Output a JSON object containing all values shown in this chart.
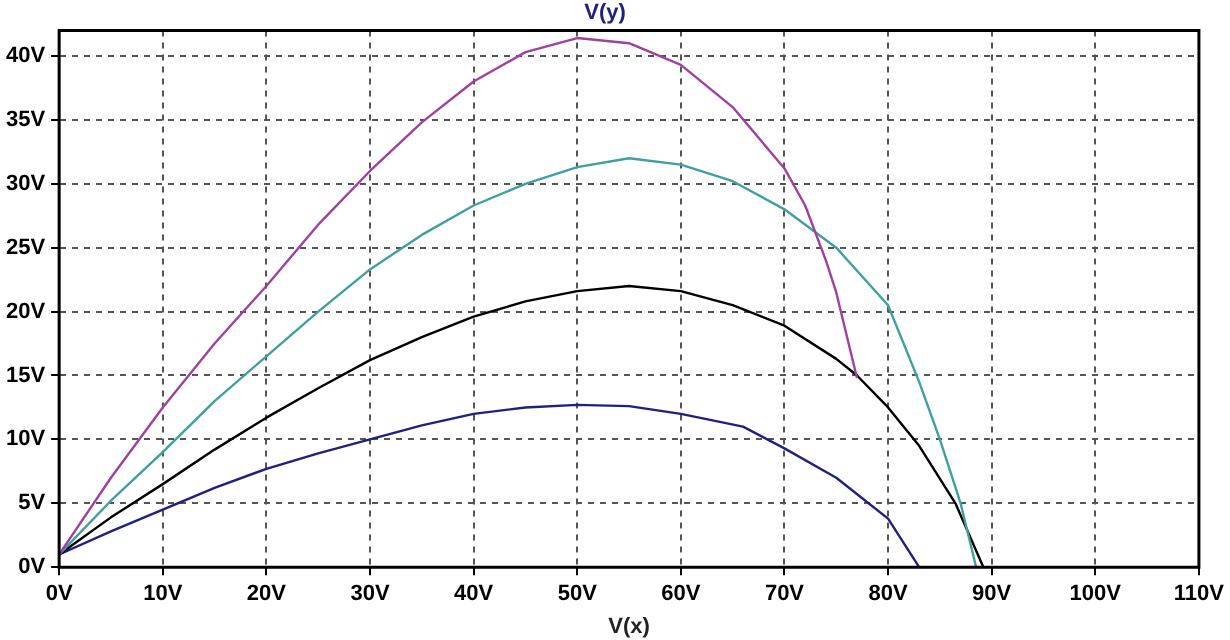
{
  "chart_data": {
    "type": "line",
    "title": "V(y)",
    "xlabel": "V(x)",
    "series": [
      {
        "color": "#a040a0",
        "x": [
          0,
          5,
          10,
          15,
          20,
          25,
          30,
          35,
          40,
          45,
          50,
          55,
          60,
          65,
          70,
          72,
          74,
          75,
          77
        ],
        "values": [
          1,
          7,
          12.5,
          17.5,
          22,
          26.8,
          31,
          34.8,
          38,
          40.3,
          41.4,
          41,
          39.3,
          36,
          31.2,
          28.3,
          24,
          21.5,
          14.8
        ]
      },
      {
        "color": "#40a0a0",
        "x": [
          0,
          5,
          10,
          15,
          20,
          25,
          30,
          35,
          40,
          45,
          50,
          55,
          60,
          65,
          70,
          75,
          80,
          83,
          85,
          87,
          88.5
        ],
        "values": [
          1,
          5.2,
          9,
          13,
          16.5,
          20,
          23.3,
          26,
          28.3,
          30,
          31.3,
          32,
          31.5,
          30.2,
          28,
          25,
          20.5,
          14.5,
          10,
          5,
          0
        ]
      },
      {
        "color": "#000000",
        "x": [
          0,
          5,
          10,
          15,
          20,
          25,
          30,
          35,
          40,
          45,
          50,
          55,
          60,
          65,
          70,
          75,
          77,
          80,
          83,
          86.5,
          89.2
        ],
        "values": [
          1,
          3.9,
          6.5,
          9.2,
          11.7,
          14,
          16.2,
          18,
          19.6,
          20.8,
          21.6,
          22,
          21.6,
          20.5,
          18.9,
          16.3,
          15,
          12.5,
          9.5,
          5,
          0
        ]
      },
      {
        "color": "#202080",
        "x": [
          0,
          5,
          10,
          15,
          20,
          25,
          30,
          35,
          40,
          45,
          50,
          55,
          60,
          66,
          70,
          75,
          80,
          83
        ],
        "values": [
          1,
          2.8,
          4.5,
          6.2,
          7.7,
          8.9,
          10,
          11.1,
          12,
          12.5,
          12.7,
          12.6,
          12,
          11,
          9.3,
          7,
          3.8,
          0
        ]
      }
    ],
    "xlim": [
      0,
      110
    ],
    "ylim": [
      0,
      42
    ],
    "xticks": [
      {
        "value": 0,
        "label": "0V"
      },
      {
        "value": 10,
        "label": "10V"
      },
      {
        "value": 20,
        "label": "20V"
      },
      {
        "value": 30,
        "label": "30V"
      },
      {
        "value": 40,
        "label": "40V"
      },
      {
        "value": 50,
        "label": "50V"
      },
      {
        "value": 60,
        "label": "60V"
      },
      {
        "value": 70,
        "label": "70V"
      },
      {
        "value": 80,
        "label": "80V"
      },
      {
        "value": 90,
        "label": "90V"
      },
      {
        "value": 100,
        "label": "100V"
      },
      {
        "value": 110,
        "label": "110V"
      }
    ],
    "yticks": [
      {
        "value": 0,
        "label": "0V"
      },
      {
        "value": 5,
        "label": "5V"
      },
      {
        "value": 10,
        "label": "10V"
      },
      {
        "value": 15,
        "label": "15V"
      },
      {
        "value": 20,
        "label": "20V"
      },
      {
        "value": 25,
        "label": "25V"
      },
      {
        "value": 30,
        "label": "30V"
      },
      {
        "value": 35,
        "label": "35V"
      },
      {
        "value": 40,
        "label": "40V"
      }
    ],
    "grid": true,
    "legend": false,
    "marker": "none",
    "line_style": "solid"
  }
}
